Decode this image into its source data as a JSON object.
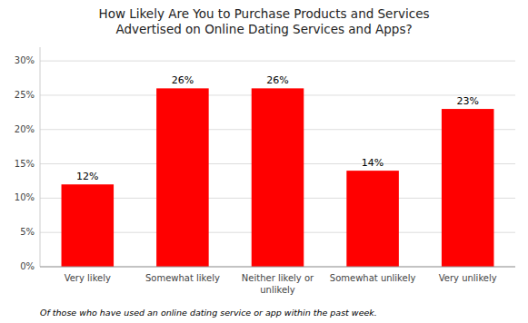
{
  "chart_data": {
    "type": "bar",
    "title": "How Likely Are You to Purchase Products and Services\nAdvertised on Online Dating Services and Apps?",
    "categories": [
      "Very likely",
      "Somewhat likely",
      "Neither likely or\nunlikely",
      "Somewhat unlikely",
      "Very unlikely"
    ],
    "values": [
      12,
      26,
      26,
      14,
      23
    ],
    "value_labels": [
      "12%",
      "26%",
      "26%",
      "14%",
      "23%"
    ],
    "data_labels": true,
    "color": "#ff0000",
    "ylim": [
      0,
      32
    ],
    "yticks": [
      {
        "value": 0,
        "label": "0%"
      },
      {
        "value": 5,
        "label": "5%"
      },
      {
        "value": 10,
        "label": "10%"
      },
      {
        "value": 15,
        "label": "15%"
      },
      {
        "value": 20,
        "label": "20%"
      },
      {
        "value": 25,
        "label": "25%"
      },
      {
        "value": 30,
        "label": "30%"
      }
    ],
    "grid": true,
    "annotations": [
      "Of those who have used an online dating service or app within the past week."
    ]
  }
}
